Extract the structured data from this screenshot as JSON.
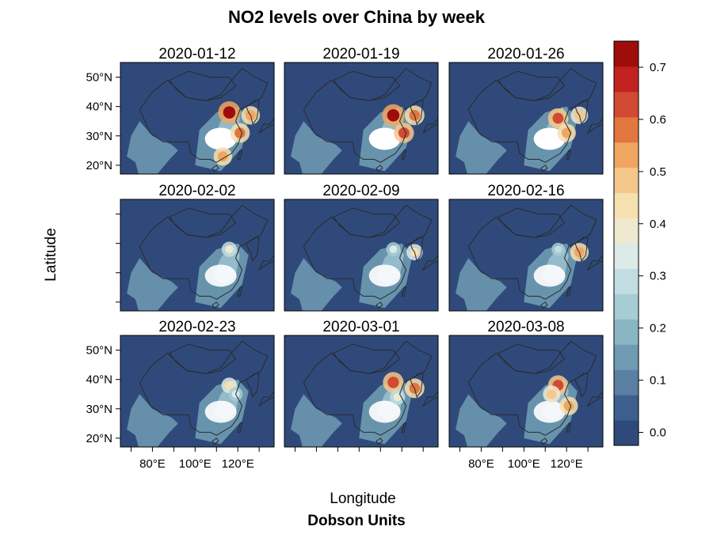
{
  "chart_data": {
    "type": "heatmap",
    "title": "NO2 levels over China by week",
    "xlabel": "Longitude",
    "ylabel": "Latitude",
    "colorbar_title": "Dobson Units",
    "panels": [
      {
        "title": "2020-01-12",
        "hotspots": [
          {
            "lon": 116,
            "lat": 38,
            "value": 0.72
          },
          {
            "lon": 121,
            "lat": 31,
            "value": 0.6
          },
          {
            "lon": 113,
            "lat": 23,
            "value": 0.55
          },
          {
            "lon": 126,
            "lat": 37,
            "value": 0.55
          }
        ]
      },
      {
        "title": "2020-01-19",
        "hotspots": [
          {
            "lon": 116,
            "lat": 37,
            "value": 0.72
          },
          {
            "lon": 121,
            "lat": 31,
            "value": 0.62
          },
          {
            "lon": 126,
            "lat": 37,
            "value": 0.6
          }
        ]
      },
      {
        "title": "2020-01-26",
        "hotspots": [
          {
            "lon": 116,
            "lat": 36,
            "value": 0.62
          },
          {
            "lon": 120,
            "lat": 31,
            "value": 0.55
          },
          {
            "lon": 126,
            "lat": 37,
            "value": 0.5
          }
        ]
      },
      {
        "title": "2020-02-02",
        "hotspots": [
          {
            "lon": 116,
            "lat": 38,
            "value": 0.4
          }
        ]
      },
      {
        "title": "2020-02-09",
        "hotspots": [
          {
            "lon": 116,
            "lat": 38,
            "value": 0.35
          },
          {
            "lon": 126,
            "lat": 37,
            "value": 0.45
          }
        ]
      },
      {
        "title": "2020-02-16",
        "hotspots": [
          {
            "lon": 126,
            "lat": 37,
            "value": 0.55
          },
          {
            "lon": 116,
            "lat": 38,
            "value": 0.3
          }
        ]
      },
      {
        "title": "2020-02-23",
        "hotspots": [
          {
            "lon": 116,
            "lat": 38,
            "value": 0.42
          },
          {
            "lon": 119,
            "lat": 35,
            "value": 0.35
          }
        ]
      },
      {
        "title": "2020-03-01",
        "hotspots": [
          {
            "lon": 116,
            "lat": 39,
            "value": 0.65
          },
          {
            "lon": 126,
            "lat": 37,
            "value": 0.6
          },
          {
            "lon": 118,
            "lat": 34,
            "value": 0.4
          }
        ]
      },
      {
        "title": "2020-03-08",
        "hotspots": [
          {
            "lon": 116,
            "lat": 38,
            "value": 0.62
          },
          {
            "lon": 113,
            "lat": 35,
            "value": 0.5
          },
          {
            "lon": 121,
            "lat": 31,
            "value": 0.55
          }
        ]
      }
    ],
    "x_range": [
      65,
      137
    ],
    "y_range": [
      17,
      55
    ],
    "x_ticks": [
      80,
      100,
      120
    ],
    "x_tick_labels": [
      "80°E",
      "100°E",
      "120°E"
    ],
    "y_ticks": [
      20,
      30,
      40,
      50
    ],
    "y_tick_labels": [
      "20°N",
      "30°N",
      "40°N",
      "50°N"
    ],
    "colorbar_range": [
      -0.025,
      0.75
    ],
    "colorbar_ticks": [
      0.0,
      0.1,
      0.2,
      0.3,
      0.4,
      0.5,
      0.6,
      0.7
    ],
    "colorbar_tick_labels": [
      "0.0",
      "0.1",
      "0.2",
      "0.3",
      "0.4",
      "0.5",
      "0.6",
      "0.7"
    ],
    "colors": [
      "#2f4a7a",
      "#3d5f8d",
      "#5a7fa3",
      "#6f9bb3",
      "#8ab6c4",
      "#a6ccd4",
      "#c2dde2",
      "#dceae8",
      "#eee9cf",
      "#f7e0b0",
      "#f5c78a",
      "#f0a660",
      "#e2763f",
      "#d24a33",
      "#c12220",
      "#9e0c0c"
    ],
    "missing_color": "#ffffff",
    "border_color": "#2a2a2a",
    "grid": false,
    "legend_position": "right"
  }
}
